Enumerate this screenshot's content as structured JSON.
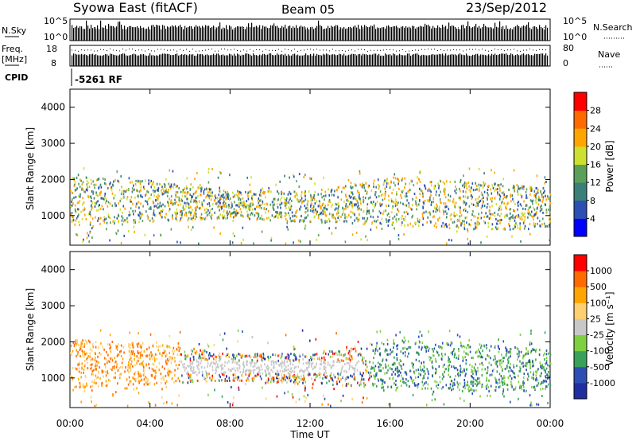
{
  "header": {
    "site": "Syowa East (fitACF)",
    "beam": "Beam 05",
    "date": "23/Sep/2012"
  },
  "top_panels": {
    "nsky_label": "N.Sky",
    "nsky_ticks": [
      "10^5",
      "10^0"
    ],
    "nsearch_label": "N.Search",
    "nsearch_ticks": [
      "10^5",
      "10^0"
    ],
    "freq_label_1": "Freq.",
    "freq_label_2": "[MHz]",
    "freq_ticks": [
      "18",
      "8"
    ],
    "nave_label": "Nave",
    "nave_ticks": [
      "80",
      "0"
    ],
    "cpid_label": "CPID",
    "cpid_value": "-5261 RF"
  },
  "colors": {
    "power_scale": [
      "#0000ff",
      "#2c4fb4",
      "#3a7f7a",
      "#5aa05a",
      "#cde030",
      "#ffa500",
      "#ff6a00",
      "#ff0000"
    ],
    "velocity_scale": [
      "#ff0000",
      "#ff6a00",
      "#ffa500",
      "#ffd070",
      "#c8c8c8",
      "#7fd040",
      "#3aa05a",
      "#2c4fb4",
      "#1f2fa0"
    ]
  },
  "chart_data": [
    {
      "type": "heatmap",
      "name_panel": "power",
      "ylabel": "Slant Range [km]",
      "ylim": [
        180,
        4500
      ],
      "yticks": [
        1000,
        2000,
        3000,
        4000
      ],
      "xlim": [
        0,
        24
      ],
      "xticks": [
        "00:00",
        "04:00",
        "08:00",
        "12:00",
        "16:00",
        "20:00",
        "00:00"
      ],
      "colorbar_label": "Power [dB]",
      "colorbar_ticks": [
        "4",
        "8",
        "12",
        "16",
        "20",
        "24",
        "28"
      ],
      "colorbar_range": [
        0,
        32
      ],
      "echo_band_km": [
        [
          0,
          1000,
          1900
        ],
        [
          4,
          1100,
          1800
        ],
        [
          8,
          1200,
          1500
        ],
        [
          12,
          1100,
          1500
        ],
        [
          16,
          1000,
          1900
        ],
        [
          20,
          900,
          1800
        ],
        [
          24,
          900,
          1600
        ]
      ]
    },
    {
      "type": "heatmap",
      "name_panel": "velocity",
      "ylabel": "Slant Range [km]",
      "ylim": [
        180,
        4500
      ],
      "yticks": [
        1000,
        2000,
        3000,
        4000
      ],
      "xlim": [
        0,
        24
      ],
      "xticks": [
        "00:00",
        "04:00",
        "08:00",
        "12:00",
        "16:00",
        "20:00",
        "00:00"
      ],
      "xlabel": "Time UT",
      "colorbar_label": "Velocity [m s⁻¹]",
      "colorbar_ticks": [
        "1000",
        "500",
        "100",
        "25",
        "-25",
        "-100",
        "-500",
        "-1000"
      ],
      "echo_band_km": [
        [
          0,
          1000,
          1900
        ],
        [
          4,
          1100,
          1800
        ],
        [
          8,
          1200,
          1500
        ],
        [
          12,
          1100,
          1500
        ],
        [
          16,
          1000,
          1900
        ],
        [
          20,
          900,
          1800
        ],
        [
          24,
          900,
          1600
        ]
      ]
    }
  ]
}
